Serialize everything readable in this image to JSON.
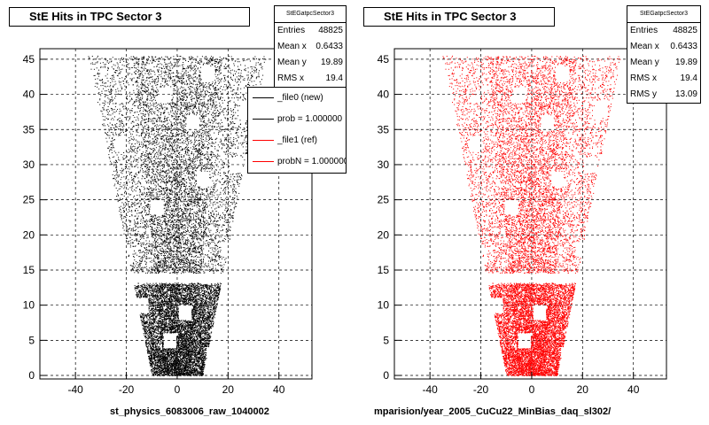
{
  "chart_data": [
    {
      "type": "scatter",
      "title": "StE Hits in TPC Sector 3",
      "xlabel": "st_physics_6083006_raw_1040002",
      "ylabel": "",
      "xlim": [
        -54,
        53
      ],
      "ylim": [
        -0.5,
        46.5
      ],
      "xticks": [
        -40,
        -20,
        0,
        20,
        40
      ],
      "yticks": [
        0,
        5,
        10,
        15,
        20,
        25,
        30,
        35,
        40,
        45
      ],
      "grid": true,
      "series_color": "#000000",
      "stats": {
        "name": "StEGatpcSector3",
        "rows": [
          {
            "key": "Entries",
            "value": "48825"
          },
          {
            "key": "Mean x",
            "value": "0.6433"
          },
          {
            "key": "Mean y",
            "value": "19.89"
          },
          {
            "key": "RMS x",
            "value": "19.4"
          }
        ]
      },
      "legend": {
        "placement": "top-right",
        "entries": [
          {
            "label": "_file0 (new)",
            "color": "#000000"
          },
          {
            "label": "prob = 1.000000",
            "color": "#000000"
          },
          {
            "label": "_file1 (ref)",
            "color": "#ff0000"
          },
          {
            "label": "probN = 1.000000",
            "color": "#ff0000"
          }
        ]
      }
    },
    {
      "type": "scatter",
      "title": "StE Hits in TPC Sector 3",
      "xlabel": "mparision/year_2005_CuCu22_MinBias_daq_sl302/",
      "ylabel": "",
      "xlim": [
        -54,
        53
      ],
      "ylim": [
        -0.5,
        46.5
      ],
      "xticks": [
        -40,
        -20,
        0,
        20,
        40
      ],
      "yticks": [
        0,
        5,
        10,
        15,
        20,
        25,
        30,
        35,
        40,
        45
      ],
      "grid": true,
      "series_color": "#ff0000",
      "stats": {
        "name": "StEGatpcSector3",
        "rows": [
          {
            "key": "Entries",
            "value": "48825"
          },
          {
            "key": "Mean x",
            "value": "0.6433"
          },
          {
            "key": "Mean y",
            "value": "19.89"
          },
          {
            "key": "RMS x",
            "value": "19.4"
          },
          {
            "key": "RMS y",
            "value": "13.09"
          }
        ]
      }
    }
  ]
}
